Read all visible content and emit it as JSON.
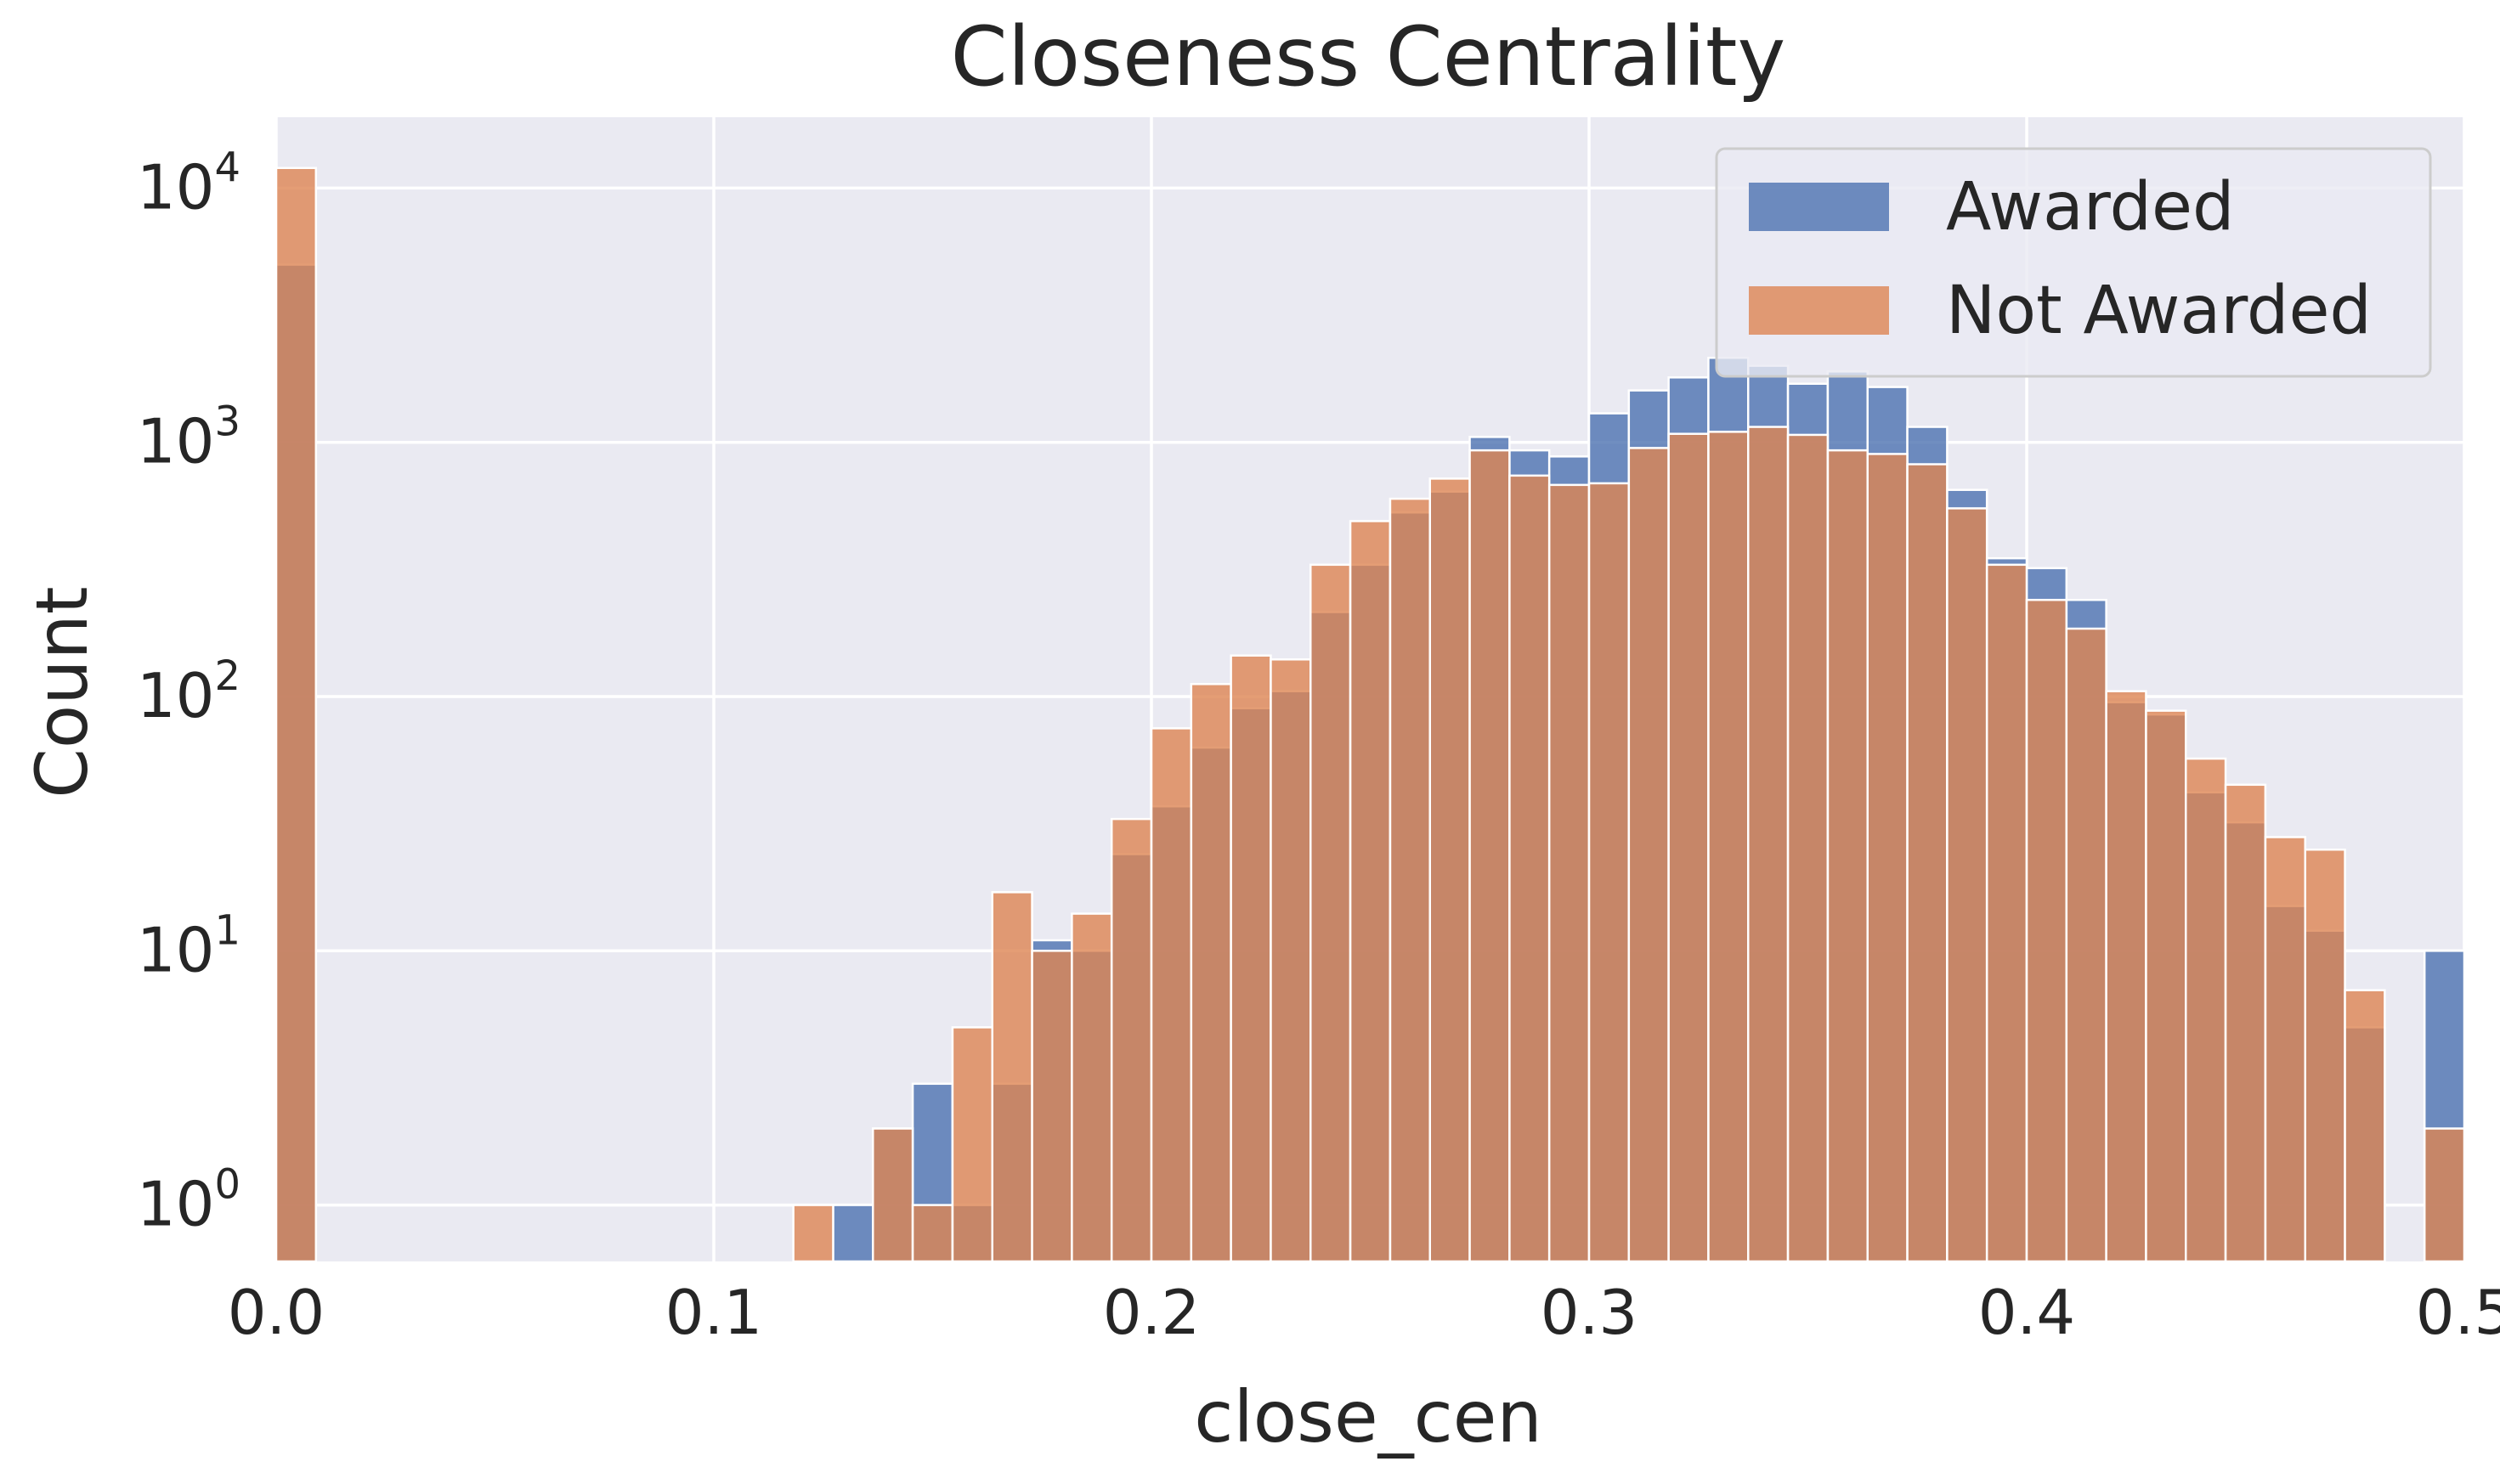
{
  "chart_data": {
    "type": "bar",
    "title": "Closeness Centrality",
    "xlabel": "close_cen",
    "ylabel": "Count",
    "xlim": [
      0.0,
      0.5
    ],
    "ylim": [
      0.6,
      19000
    ],
    "yscale": "log",
    "grid": true,
    "legend_position": "top-right",
    "bin_width": 0.00909,
    "x_ticks": [
      {
        "value": 0.0,
        "label": "0.0"
      },
      {
        "value": 0.1,
        "label": "0.1"
      },
      {
        "value": 0.2,
        "label": "0.2"
      },
      {
        "value": 0.3,
        "label": "0.3"
      },
      {
        "value": 0.4,
        "label": "0.4"
      },
      {
        "value": 0.5,
        "label": "0.5"
      }
    ],
    "y_ticks": [
      {
        "value": 1,
        "base": "10",
        "exp": "0"
      },
      {
        "value": 10,
        "base": "10",
        "exp": "1"
      },
      {
        "value": 100,
        "base": "10",
        "exp": "2"
      },
      {
        "value": 1000,
        "base": "10",
        "exp": "3"
      },
      {
        "value": 10000,
        "base": "10",
        "exp": "4"
      }
    ],
    "bin_starts": [
      0.0,
      0.11818,
      0.12727,
      0.13636,
      0.14545,
      0.15455,
      0.16364,
      0.17273,
      0.18182,
      0.19091,
      0.2,
      0.20909,
      0.21818,
      0.22727,
      0.23636,
      0.24545,
      0.25455,
      0.26364,
      0.27273,
      0.28182,
      0.29091,
      0.3,
      0.30909,
      0.31818,
      0.32727,
      0.33636,
      0.34545,
      0.35455,
      0.36364,
      0.37273,
      0.38182,
      0.39091,
      0.4,
      0.40909,
      0.41818,
      0.42727,
      0.43636,
      0.44545,
      0.45455,
      0.46364,
      0.47273,
      0.49091
    ],
    "series": [
      {
        "name": "Awarded",
        "color": "#4c72b0",
        "values": [
          5000,
          0,
          1,
          2,
          3,
          1,
          3,
          11,
          10,
          24,
          37,
          63,
          90,
          105,
          215,
          330,
          530,
          640,
          1050,
          930,
          880,
          1300,
          1600,
          1800,
          2150,
          2000,
          1700,
          1900,
          1650,
          1150,
          650,
          350,
          320,
          240,
          95,
          85,
          42,
          32,
          15,
          12,
          5,
          10
        ]
      },
      {
        "name": "Not Awarded",
        "color": "#dd8452",
        "values": [
          12000,
          1,
          0,
          2,
          1,
          5,
          17,
          10,
          14,
          33,
          75,
          112,
          145,
          140,
          330,
          490,
          600,
          720,
          930,
          740,
          680,
          690,
          950,
          1080,
          1100,
          1150,
          1070,
          930,
          900,
          820,
          550,
          330,
          240,
          185,
          105,
          88,
          57,
          45,
          28,
          25,
          7,
          2
        ]
      }
    ]
  }
}
